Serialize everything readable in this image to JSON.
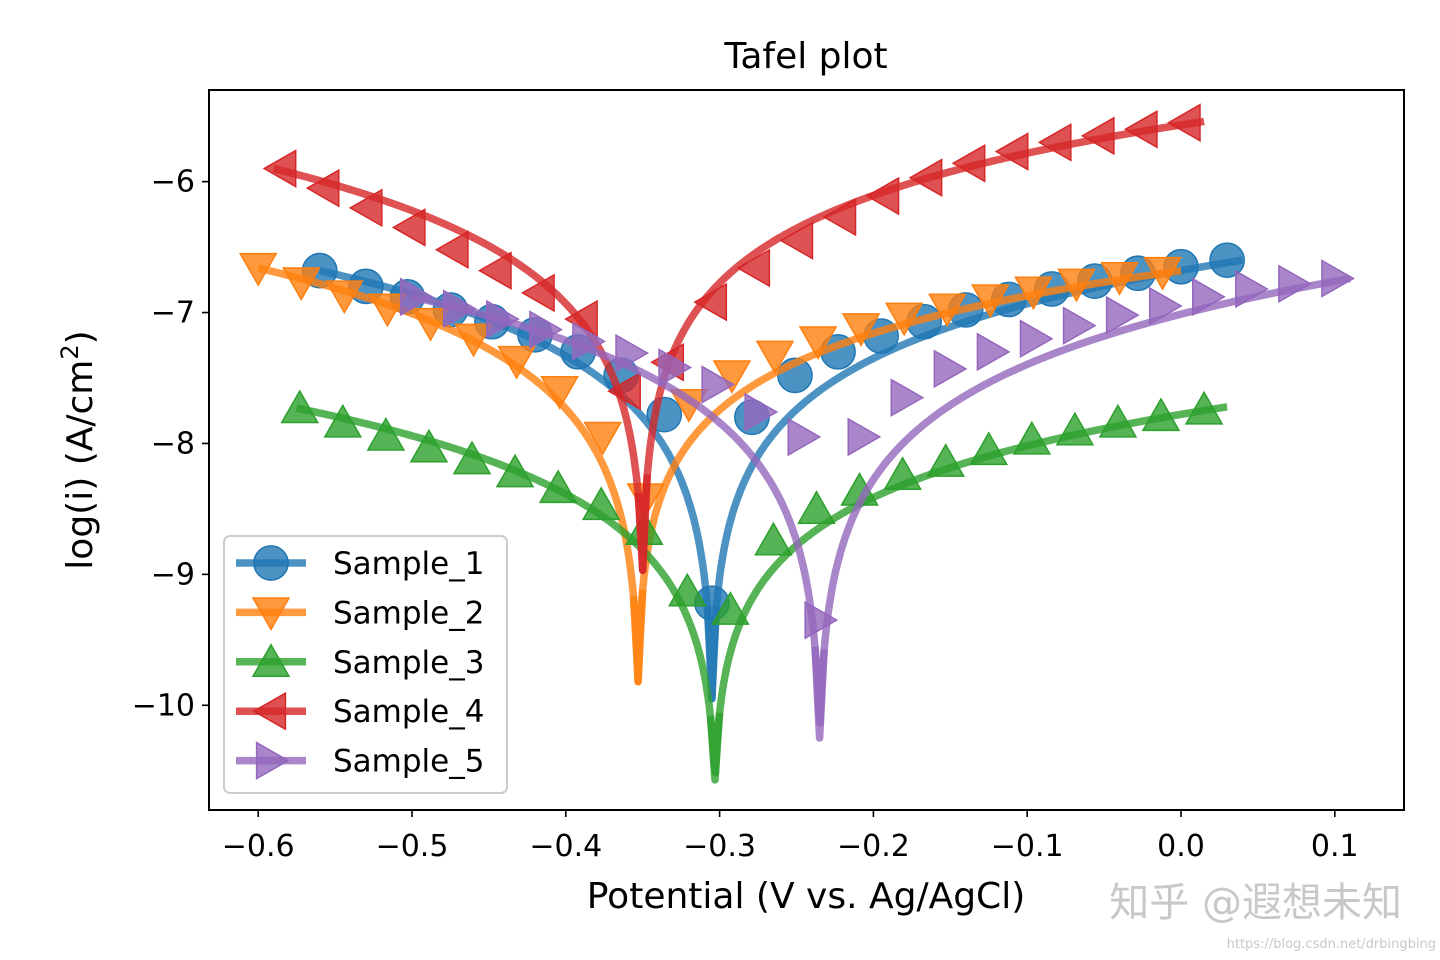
{
  "chart_data": {
    "type": "line",
    "title": "Tafel plot",
    "xlabel": "Potential (V vs. Ag/AgCl)",
    "ylabel_main": "log(i) (A/cm",
    "ylabel_sup": "2",
    "ylabel_end": ")",
    "xlim": [
      -0.632,
      0.145
    ],
    "ylim": [
      -10.8,
      -5.3
    ],
    "xticks": [
      -0.6,
      -0.5,
      -0.4,
      -0.3,
      -0.2,
      -0.1,
      0.0,
      0.1
    ],
    "xtick_labels": [
      "−0.6",
      "−0.5",
      "−0.4",
      "−0.3",
      "−0.2",
      "−0.1",
      "0.0",
      "0.1"
    ],
    "yticks": [
      -6,
      -7,
      -8,
      -9,
      -10
    ],
    "ytick_labels": [
      "−6",
      "−7",
      "−8",
      "−9",
      "−10"
    ],
    "legend_position": "lower-left",
    "series": [
      {
        "name": "Sample_1",
        "color": "#1f77b4",
        "marker": "circle",
        "x_start": -0.56,
        "x_end": 0.04,
        "x_min": -0.305,
        "y_left": -6.68,
        "y_right": -6.6,
        "y_min": -9.95,
        "slope_left": 0.42,
        "slope_right": 0.38,
        "marker_step": 0.0139,
        "markers": [
          [
            -0.56,
            -6.68
          ],
          [
            -0.53,
            -6.8
          ],
          [
            -0.503,
            -6.88
          ],
          [
            -0.475,
            -6.98
          ],
          [
            -0.448,
            -7.07
          ],
          [
            -0.42,
            -7.17
          ],
          [
            -0.392,
            -7.3
          ],
          [
            -0.364,
            -7.48
          ],
          [
            -0.336,
            -7.78
          ],
          [
            -0.305,
            -9.22
          ],
          [
            -0.279,
            -7.8
          ],
          [
            -0.251,
            -7.48
          ],
          [
            -0.223,
            -7.3
          ],
          [
            -0.195,
            -7.18
          ],
          [
            -0.167,
            -7.07
          ],
          [
            -0.14,
            -6.98
          ],
          [
            -0.112,
            -6.9
          ],
          [
            -0.084,
            -6.82
          ],
          [
            -0.056,
            -6.76
          ],
          [
            -0.028,
            -6.7
          ],
          [
            0.0,
            -6.65
          ],
          [
            0.03,
            -6.6
          ]
        ]
      },
      {
        "name": "Sample_2",
        "color": "#ff7f0e",
        "marker": "triangle-down",
        "x_start": -0.6,
        "x_end": 0.0,
        "x_min": -0.353,
        "y_left": -6.66,
        "y_right": -6.68,
        "y_min": -9.82,
        "slope_left": 0.5,
        "slope_right": 0.3,
        "marker_step": 0.0139,
        "markers": [
          [
            -0.6,
            -6.66
          ],
          [
            -0.572,
            -6.77
          ],
          [
            -0.544,
            -6.87
          ],
          [
            -0.516,
            -6.97
          ],
          [
            -0.488,
            -7.08
          ],
          [
            -0.46,
            -7.2
          ],
          [
            -0.432,
            -7.37
          ],
          [
            -0.404,
            -7.6
          ],
          [
            -0.376,
            -7.95
          ],
          [
            -0.348,
            -8.42
          ],
          [
            -0.32,
            -7.7
          ],
          [
            -0.292,
            -7.48
          ],
          [
            -0.264,
            -7.33
          ],
          [
            -0.236,
            -7.22
          ],
          [
            -0.208,
            -7.12
          ],
          [
            -0.18,
            -7.04
          ],
          [
            -0.152,
            -6.97
          ],
          [
            -0.124,
            -6.9
          ],
          [
            -0.096,
            -6.84
          ],
          [
            -0.068,
            -6.78
          ],
          [
            -0.04,
            -6.73
          ],
          [
            -0.012,
            -6.69
          ]
        ]
      },
      {
        "name": "Sample_3",
        "color": "#2ca02c",
        "marker": "triangle-up",
        "x_start": -0.575,
        "x_end": 0.03,
        "x_min": -0.303,
        "y_left": -7.73,
        "y_right": -7.72,
        "y_min": -10.57,
        "slope_left": 0.72,
        "slope_right": 0.6,
        "marker_step": 0.0139,
        "markers": [
          [
            -0.573,
            -7.73
          ],
          [
            -0.545,
            -7.84
          ],
          [
            -0.517,
            -7.94
          ],
          [
            -0.489,
            -8.03
          ],
          [
            -0.461,
            -8.12
          ],
          [
            -0.433,
            -8.22
          ],
          [
            -0.405,
            -8.34
          ],
          [
            -0.377,
            -8.47
          ],
          [
            -0.349,
            -8.66
          ],
          [
            -0.321,
            -9.13
          ],
          [
            -0.293,
            -9.27
          ],
          [
            -0.265,
            -8.74
          ],
          [
            -0.237,
            -8.5
          ],
          [
            -0.209,
            -8.36
          ],
          [
            -0.181,
            -8.24
          ],
          [
            -0.153,
            -8.14
          ],
          [
            -0.125,
            -8.05
          ],
          [
            -0.097,
            -7.97
          ],
          [
            -0.069,
            -7.9
          ],
          [
            -0.041,
            -7.84
          ],
          [
            -0.013,
            -7.79
          ],
          [
            0.015,
            -7.74
          ]
        ]
      },
      {
        "name": "Sample_4",
        "color": "#d62728",
        "marker": "triangle-left",
        "x_start": -0.59,
        "x_end": 0.015,
        "x_min": -0.35,
        "y_left": -5.9,
        "y_right": -5.54,
        "y_min": -8.97,
        "slope_left": 0.6,
        "slope_right": 0.35,
        "marker_step": 0.0139,
        "markers": [
          [
            -0.585,
            -5.9
          ],
          [
            -0.557,
            -6.05
          ],
          [
            -0.529,
            -6.2
          ],
          [
            -0.501,
            -6.35
          ],
          [
            -0.473,
            -6.52
          ],
          [
            -0.445,
            -6.68
          ],
          [
            -0.417,
            -6.85
          ],
          [
            -0.389,
            -7.05
          ],
          [
            -0.361,
            -7.6
          ],
          [
            -0.333,
            -7.38
          ],
          [
            -0.305,
            -6.92
          ],
          [
            -0.277,
            -6.66
          ],
          [
            -0.249,
            -6.45
          ],
          [
            -0.221,
            -6.27
          ],
          [
            -0.193,
            -6.11
          ],
          [
            -0.165,
            -5.97
          ],
          [
            -0.137,
            -5.86
          ],
          [
            -0.109,
            -5.77
          ],
          [
            -0.081,
            -5.7
          ],
          [
            -0.053,
            -5.65
          ],
          [
            -0.025,
            -5.6
          ],
          [
            0.003,
            -5.55
          ]
        ]
      },
      {
        "name": "Sample_5",
        "color": "#9467bd",
        "marker": "triangle-right",
        "x_start": -0.5,
        "x_end": 0.11,
        "x_min": -0.235,
        "y_left": -6.88,
        "y_right": -6.74,
        "y_min": -10.25,
        "slope_left": 0.48,
        "slope_right": 0.5,
        "marker_step": 0.0139,
        "markers": [
          [
            -0.498,
            -6.88
          ],
          [
            -0.47,
            -6.97
          ],
          [
            -0.442,
            -7.05
          ],
          [
            -0.414,
            -7.13
          ],
          [
            -0.386,
            -7.22
          ],
          [
            -0.358,
            -7.31
          ],
          [
            -0.33,
            -7.42
          ],
          [
            -0.302,
            -7.55
          ],
          [
            -0.274,
            -7.76
          ],
          [
            -0.246,
            -7.95
          ],
          [
            -0.235,
            -9.35
          ],
          [
            -0.207,
            -7.95
          ],
          [
            -0.179,
            -7.65
          ],
          [
            -0.151,
            -7.43
          ],
          [
            -0.123,
            -7.3
          ],
          [
            -0.095,
            -7.2
          ],
          [
            -0.067,
            -7.1
          ],
          [
            -0.039,
            -7.02
          ],
          [
            -0.011,
            -6.95
          ],
          [
            0.017,
            -6.88
          ],
          [
            0.045,
            -6.82
          ],
          [
            0.073,
            -6.78
          ],
          [
            0.101,
            -6.74
          ]
        ]
      }
    ]
  },
  "watermark": {
    "main": "知乎 @遐想未知",
    "url": "https://blog.csdn.net/drbingbing"
  }
}
